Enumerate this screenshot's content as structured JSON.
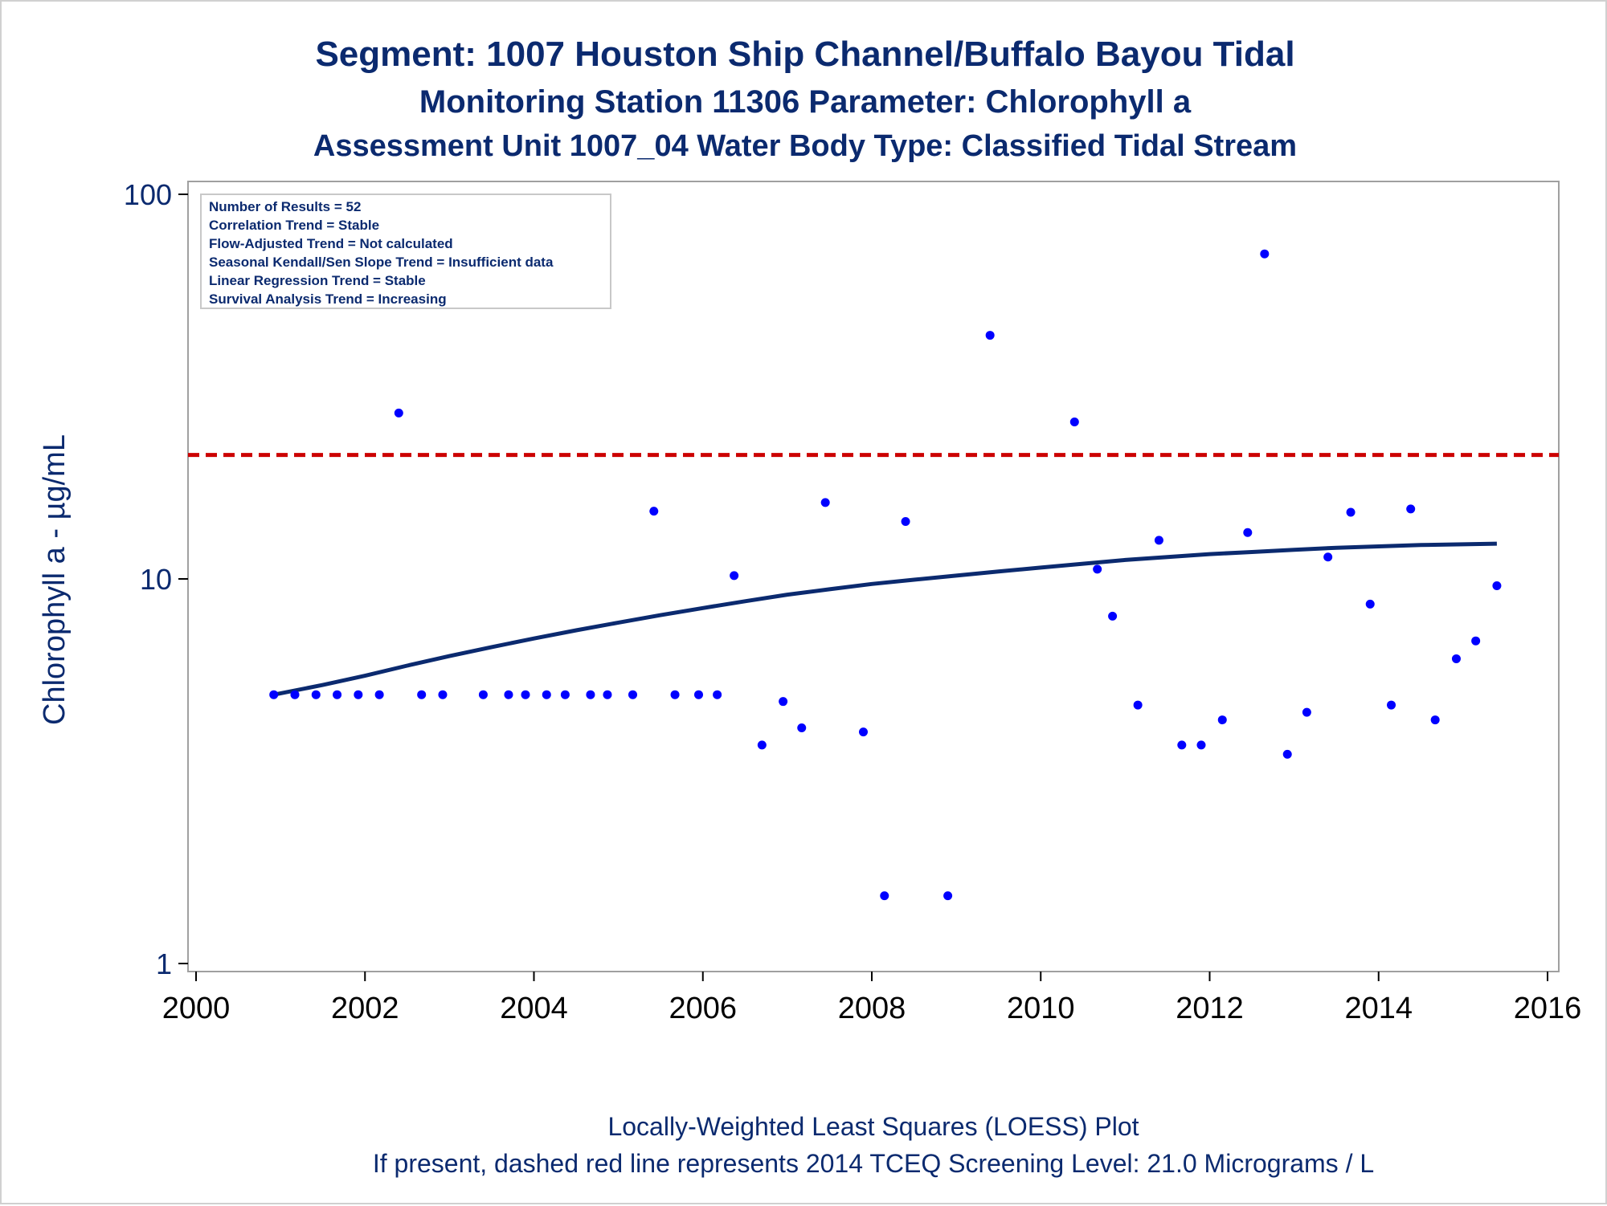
{
  "titles": {
    "line1": "Segment: 1007  Houston Ship Channel/Buffalo Bayou Tidal",
    "line2": "Monitoring Station 11306 Parameter: Chlorophyll a",
    "line3": "Assessment Unit 1007_04   Water Body Type: Classified Tidal Stream"
  },
  "footnotes": {
    "line1": "Locally-Weighted Least Squares (LOESS) Plot",
    "line2": "If present, dashed red line represents 2014 TCEQ Screening Level: 21.0 Micrograms / L"
  },
  "stats_box": [
    "Number of Results = 52",
    "Correlation Trend = Stable",
    "Flow-Adjusted Trend = Not calculated",
    "Seasonal Kendall/Sen Slope Trend = Insufficient data",
    "Linear Regression Trend = Stable",
    "Survival Analysis Trend = Increasing"
  ],
  "colors": {
    "points": "#0000ff",
    "loess": "#0b2a6f",
    "screening": "#cc0000",
    "text": "#0b2a6f",
    "axis": "#a0a0a0"
  },
  "chart_data": {
    "type": "scatter",
    "title": "Segment: 1007  Houston Ship Channel/Buffalo Bayou Tidal",
    "xlabel": "",
    "ylabel": "Chlorophyll a -  µg/mL",
    "xlim": [
      2000,
      2016
    ],
    "ylim": [
      1,
      100
    ],
    "yscale": "log",
    "x_ticks": [
      2000,
      2002,
      2004,
      2006,
      2008,
      2010,
      2012,
      2014,
      2016
    ],
    "y_ticks": [
      1,
      10,
      100
    ],
    "grid": false,
    "screening_level": 21.0,
    "points": [
      [
        2000.92,
        5.0
      ],
      [
        2001.17,
        5.0
      ],
      [
        2001.42,
        5.0
      ],
      [
        2001.67,
        5.0
      ],
      [
        2001.92,
        5.0
      ],
      [
        2002.17,
        5.0
      ],
      [
        2002.4,
        27.0
      ],
      [
        2002.67,
        5.0
      ],
      [
        2002.92,
        5.0
      ],
      [
        2003.4,
        5.0
      ],
      [
        2003.7,
        5.0
      ],
      [
        2003.9,
        5.0
      ],
      [
        2004.15,
        5.0
      ],
      [
        2004.37,
        5.0
      ],
      [
        2004.67,
        5.0
      ],
      [
        2004.87,
        5.0
      ],
      [
        2005.17,
        5.0
      ],
      [
        2005.42,
        15.0
      ],
      [
        2005.67,
        5.0
      ],
      [
        2005.95,
        5.0
      ],
      [
        2006.17,
        5.0
      ],
      [
        2006.37,
        10.2
      ],
      [
        2006.7,
        3.7
      ],
      [
        2006.95,
        4.8
      ],
      [
        2007.17,
        4.1
      ],
      [
        2007.45,
        15.8
      ],
      [
        2007.9,
        4.0
      ],
      [
        2008.15,
        1.5
      ],
      [
        2008.4,
        14.1
      ],
      [
        2008.9,
        1.5
      ],
      [
        2009.4,
        43.0
      ],
      [
        2010.4,
        25.6
      ],
      [
        2010.67,
        10.6
      ],
      [
        2010.85,
        8.0
      ],
      [
        2011.15,
        4.7
      ],
      [
        2011.4,
        12.6
      ],
      [
        2011.67,
        3.7
      ],
      [
        2011.9,
        3.7
      ],
      [
        2012.15,
        4.3
      ],
      [
        2012.45,
        13.2
      ],
      [
        2012.65,
        70.0
      ],
      [
        2012.92,
        3.5
      ],
      [
        2013.15,
        4.5
      ],
      [
        2013.4,
        11.4
      ],
      [
        2013.67,
        14.9
      ],
      [
        2013.9,
        8.6
      ],
      [
        2014.15,
        4.7
      ],
      [
        2014.38,
        15.2
      ],
      [
        2014.67,
        4.3
      ],
      [
        2014.92,
        6.2
      ],
      [
        2015.15,
        6.9
      ],
      [
        2015.4,
        9.6
      ]
    ],
    "loess": [
      [
        2000.92,
        5.0
      ],
      [
        2001.5,
        5.3
      ],
      [
        2002.0,
        5.6
      ],
      [
        2002.5,
        5.95
      ],
      [
        2003.0,
        6.3
      ],
      [
        2003.5,
        6.65
      ],
      [
        2004.0,
        7.0
      ],
      [
        2004.5,
        7.35
      ],
      [
        2005.0,
        7.7
      ],
      [
        2005.5,
        8.05
      ],
      [
        2006.0,
        8.4
      ],
      [
        2006.5,
        8.75
      ],
      [
        2007.0,
        9.1
      ],
      [
        2007.5,
        9.4
      ],
      [
        2008.0,
        9.7
      ],
      [
        2008.5,
        9.95
      ],
      [
        2009.0,
        10.2
      ],
      [
        2009.5,
        10.45
      ],
      [
        2010.0,
        10.7
      ],
      [
        2010.5,
        10.95
      ],
      [
        2011.0,
        11.2
      ],
      [
        2011.5,
        11.4
      ],
      [
        2012.0,
        11.6
      ],
      [
        2012.5,
        11.75
      ],
      [
        2013.0,
        11.9
      ],
      [
        2013.5,
        12.05
      ],
      [
        2014.0,
        12.15
      ],
      [
        2014.5,
        12.25
      ],
      [
        2015.0,
        12.3
      ],
      [
        2015.4,
        12.35
      ]
    ]
  }
}
